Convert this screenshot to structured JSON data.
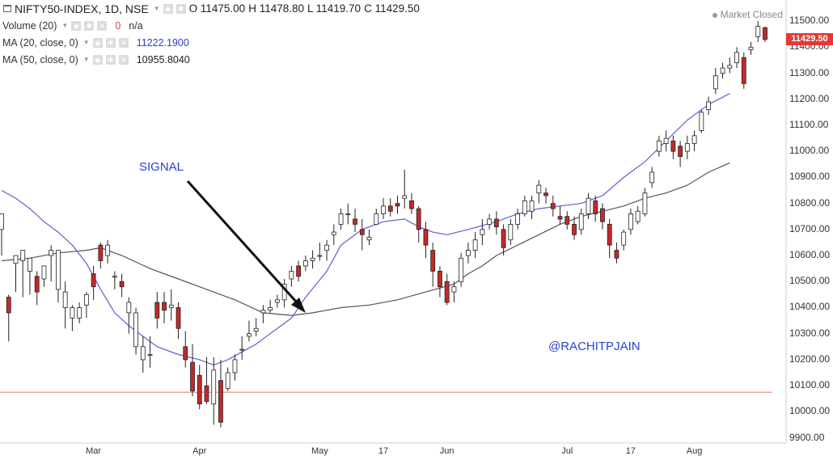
{
  "header": {
    "symbol": "NIFTY50-INDEX, 1D, NSE",
    "open": "O 11475.00",
    "high": "H 11478.80",
    "low": "L 11419.70",
    "close": "C 11429.50",
    "status": "Market Closed"
  },
  "indicators": [
    {
      "label": "Volume (20)",
      "value": "0",
      "value2": "n/a"
    },
    {
      "label": "MA (20, close, 0)",
      "value": "11222.1900"
    },
    {
      "label": "MA (50, close, 0)",
      "value": "10955.8040"
    }
  ],
  "annotations": {
    "signal": "SIGNAL",
    "watermark": "@RACHITPJAIN"
  },
  "chart_data": {
    "type": "candlestick",
    "y_ticks": [
      "11500.00",
      "11400.00",
      "11300.00",
      "11200.00",
      "11100.00",
      "11000.00",
      "10900.00",
      "10800.00",
      "10700.00",
      "10600.00",
      "10500.00",
      "10400.00",
      "10300.00",
      "10200.00",
      "10100.00",
      "10000.00",
      "9900.00"
    ],
    "x_ticks": [
      "Mar",
      "Apr",
      "May",
      "17",
      "Jun",
      "Jul",
      "17",
      "Aug"
    ],
    "ylim": [
      9880,
      11550
    ],
    "last_price": "11429.50",
    "reference_line": 10075,
    "colors": {
      "up": "#ffffff",
      "down": "#c62828",
      "wick": "#222222",
      "ma20": "#5c5fd6",
      "ma50": "#555555",
      "last": "#e53935",
      "ref": "#e57373"
    },
    "candles": [
      [
        10700,
        10760,
        10650,
        10600
      ],
      [
        10440,
        10380,
        10450,
        10270
      ],
      [
        10570,
        10600,
        10580,
        10460
      ],
      [
        10580,
        10620,
        10600,
        10440
      ],
      [
        10540,
        10590,
        10560,
        10450
      ],
      [
        10520,
        10460,
        10540,
        10410
      ],
      [
        10510,
        10560,
        10530,
        10480
      ],
      [
        10600,
        10620,
        10640,
        10500
      ],
      [
        10470,
        10620,
        10620,
        10420
      ],
      [
        10400,
        10460,
        10500,
        10320
      ],
      [
        10360,
        10400,
        10410,
        10310
      ],
      [
        10360,
        10400,
        10420,
        10340
      ],
      [
        10410,
        10450,
        10460,
        10360
      ],
      [
        10530,
        10480,
        10560,
        10430
      ],
      [
        10640,
        10580,
        10650,
        10550
      ],
      [
        10600,
        10640,
        10660,
        10570
      ],
      [
        10520,
        10520,
        10540,
        10470
      ],
      [
        10500,
        10480,
        10530,
        10440
      ],
      [
        10380,
        10420,
        10440,
        10300
      ],
      [
        10250,
        10380,
        10400,
        10220
      ],
      [
        10200,
        10250,
        10290,
        10150
      ],
      [
        10220,
        10220,
        10290,
        10170
      ],
      [
        10420,
        10360,
        10460,
        10320
      ],
      [
        10420,
        10390,
        10460,
        10340
      ],
      [
        10400,
        10410,
        10470,
        10350
      ],
      [
        10400,
        10320,
        10420,
        10280
      ],
      [
        10250,
        10200,
        10310,
        10170
      ],
      [
        10190,
        10080,
        10260,
        10060
      ],
      [
        10140,
        10030,
        10180,
        10010
      ],
      [
        10100,
        10040,
        10210,
        10030
      ],
      [
        10030,
        10160,
        10210,
        9950
      ],
      [
        10120,
        9960,
        10200,
        9940
      ],
      [
        10090,
        10150,
        10170,
        10080
      ],
      [
        10150,
        10200,
        10220,
        10120
      ],
      [
        10240,
        10240,
        10290,
        10200
      ],
      [
        10290,
        10300,
        10350,
        10270
      ],
      [
        10310,
        10320,
        10360,
        10290
      ],
      [
        10380,
        10390,
        10410,
        10340
      ],
      [
        10390,
        10400,
        10430,
        10380
      ],
      [
        10420,
        10430,
        10450,
        10400
      ],
      [
        10430,
        10490,
        10510,
        10400
      ],
      [
        10510,
        10540,
        10560,
        10480
      ],
      [
        10560,
        10520,
        10580,
        10500
      ],
      [
        10560,
        10580,
        10600,
        10540
      ],
      [
        10580,
        10590,
        10620,
        10550
      ],
      [
        10600,
        10600,
        10650,
        10580
      ],
      [
        10620,
        10640,
        10660,
        10580
      ],
      [
        10680,
        10690,
        10720,
        10640
      ],
      [
        10720,
        10760,
        10780,
        10700
      ],
      [
        10760,
        10760,
        10800,
        10720
      ],
      [
        10740,
        10720,
        10780,
        10690
      ],
      [
        10700,
        10680,
        10740,
        10620
      ],
      [
        10660,
        10670,
        10700,
        10640
      ],
      [
        10720,
        10760,
        10780,
        10720
      ],
      [
        10760,
        10790,
        10820,
        10740
      ],
      [
        10790,
        10770,
        10820,
        10750
      ],
      [
        10800,
        10790,
        10830,
        10760
      ],
      [
        10820,
        10830,
        10930,
        10780
      ],
      [
        10810,
        10780,
        10840,
        10760
      ],
      [
        10780,
        10700,
        10790,
        10650
      ],
      [
        10700,
        10640,
        10730,
        10590
      ],
      [
        10620,
        10540,
        10650,
        10480
      ],
      [
        10540,
        10480,
        10560,
        10440
      ],
      [
        10500,
        10420,
        10530,
        10410
      ],
      [
        10460,
        10480,
        10500,
        10420
      ],
      [
        10500,
        10590,
        10610,
        10480
      ],
      [
        10600,
        10620,
        10650,
        10570
      ],
      [
        10620,
        10660,
        10690,
        10590
      ],
      [
        10680,
        10700,
        10740,
        10640
      ],
      [
        10720,
        10740,
        10760,
        10700
      ],
      [
        10740,
        10710,
        10770,
        10680
      ],
      [
        10700,
        10630,
        10720,
        10600
      ],
      [
        10660,
        10720,
        10740,
        10640
      ],
      [
        10720,
        10760,
        10780,
        10700
      ],
      [
        10760,
        10810,
        10830,
        10750
      ],
      [
        10770,
        10810,
        10830,
        10740
      ],
      [
        10840,
        10870,
        10890,
        10800
      ],
      [
        10840,
        10830,
        10860,
        10800
      ],
      [
        10800,
        10780,
        10830,
        10750
      ],
      [
        10750,
        10740,
        10790,
        10720
      ],
      [
        10750,
        10720,
        10770,
        10700
      ],
      [
        10720,
        10680,
        10750,
        10660
      ],
      [
        10700,
        10760,
        10780,
        10680
      ],
      [
        10760,
        10820,
        10840,
        10740
      ],
      [
        10810,
        10760,
        10830,
        10730
      ],
      [
        10780,
        10730,
        10800,
        10700
      ],
      [
        10720,
        10640,
        10740,
        10590
      ],
      [
        10620,
        10590,
        10650,
        10570
      ],
      [
        10640,
        10690,
        10700,
        10620
      ],
      [
        10700,
        10760,
        10780,
        10680
      ],
      [
        10730,
        10770,
        10790,
        10720
      ],
      [
        10760,
        10840,
        10860,
        10750
      ],
      [
        10880,
        10920,
        10940,
        10860
      ],
      [
        11000,
        11040,
        11060,
        10980
      ],
      [
        11030,
        11050,
        11080,
        11000
      ],
      [
        11040,
        11000,
        11060,
        10970
      ],
      [
        11020,
        10980,
        11040,
        10940
      ],
      [
        11000,
        11030,
        11060,
        10970
      ],
      [
        11030,
        11060,
        11080,
        11000
      ],
      [
        11080,
        11150,
        11160,
        11070
      ],
      [
        11160,
        11190,
        11210,
        11140
      ],
      [
        11240,
        11290,
        11320,
        11220
      ],
      [
        11300,
        11320,
        11340,
        11280
      ],
      [
        11320,
        11330,
        11360,
        11300
      ],
      [
        11340,
        11380,
        11400,
        11320
      ],
      [
        11360,
        11260,
        11380,
        11240
      ],
      [
        11390,
        11400,
        11420,
        11370
      ],
      [
        11440,
        11480,
        11500,
        11420
      ],
      [
        11475,
        11429.5,
        11478.8,
        11419.7
      ]
    ],
    "ma20": [
      [
        10850,
        0
      ],
      [
        10820,
        2
      ],
      [
        10780,
        4
      ],
      [
        10730,
        6
      ],
      [
        10690,
        8
      ],
      [
        10640,
        10
      ],
      [
        10570,
        12
      ],
      [
        10470,
        14
      ],
      [
        10380,
        16
      ],
      [
        10330,
        18
      ],
      [
        10290,
        20
      ],
      [
        10250,
        22
      ],
      [
        10220,
        25
      ],
      [
        10200,
        28
      ],
      [
        10180,
        30
      ],
      [
        10200,
        32
      ],
      [
        10230,
        34
      ],
      [
        10260,
        36
      ],
      [
        10300,
        38
      ],
      [
        10360,
        41
      ],
      [
        10440,
        43
      ],
      [
        10540,
        46
      ],
      [
        10640,
        48
      ],
      [
        10700,
        51
      ],
      [
        10730,
        54
      ],
      [
        10740,
        57
      ],
      [
        10710,
        59
      ],
      [
        10690,
        61
      ],
      [
        10680,
        63
      ],
      [
        10700,
        66
      ],
      [
        10730,
        70
      ],
      [
        10760,
        73
      ],
      [
        10780,
        76
      ],
      [
        10790,
        79
      ],
      [
        10800,
        82
      ],
      [
        10830,
        85
      ],
      [
        10900,
        88
      ],
      [
        10960,
        91
      ],
      [
        11040,
        94
      ],
      [
        11120,
        97
      ],
      [
        11180,
        100
      ],
      [
        11222,
        103
      ]
    ],
    "ma50": [
      [
        10580,
        0
      ],
      [
        10590,
        4
      ],
      [
        10610,
        8
      ],
      [
        10620,
        12
      ],
      [
        10630,
        14
      ],
      [
        10600,
        17
      ],
      [
        10550,
        21
      ],
      [
        10510,
        25
      ],
      [
        10470,
        29
      ],
      [
        10430,
        33
      ],
      [
        10380,
        37
      ],
      [
        10370,
        41
      ],
      [
        10380,
        44
      ],
      [
        10400,
        48
      ],
      [
        10410,
        52
      ],
      [
        10430,
        56
      ],
      [
        10460,
        60
      ],
      [
        10490,
        64
      ],
      [
        10530,
        66
      ],
      [
        10560,
        68
      ],
      [
        10600,
        70
      ],
      [
        10640,
        73
      ],
      [
        10680,
        76
      ],
      [
        10720,
        79
      ],
      [
        10750,
        82
      ],
      [
        10770,
        85
      ],
      [
        10790,
        88
      ],
      [
        10820,
        91
      ],
      [
        10840,
        94
      ],
      [
        10870,
        97
      ],
      [
        10920,
        100
      ],
      [
        10956,
        103
      ]
    ]
  }
}
